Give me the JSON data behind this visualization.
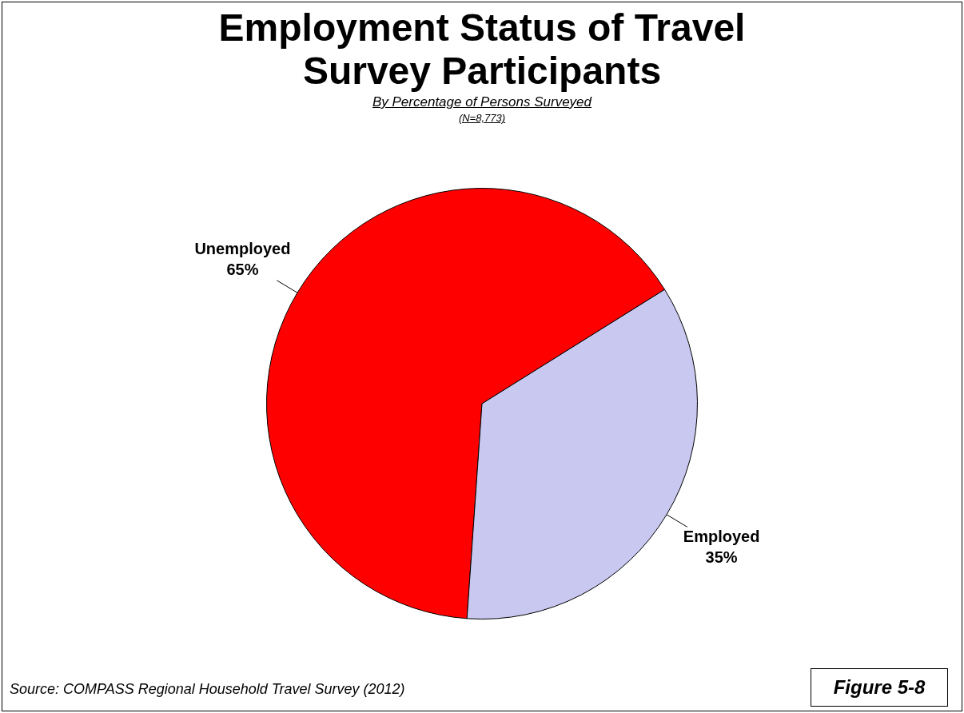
{
  "chart_data": {
    "type": "pie",
    "title": "Employment Status of Travel Survey Participants",
    "subtitle": "By Percentage of Persons Surveyed",
    "categories": [
      "Unemployed",
      "Employed"
    ],
    "values": [
      65,
      35
    ],
    "colors": [
      "#ff0000",
      "#c8c8f0"
    ],
    "value_labels": [
      "65%",
      "35%"
    ],
    "legend": false,
    "annotations": [
      "(N=8,773)",
      "Source:  COMPASS Regional Household Travel Survey (2012)",
      "Figure 5-8"
    ]
  }
}
